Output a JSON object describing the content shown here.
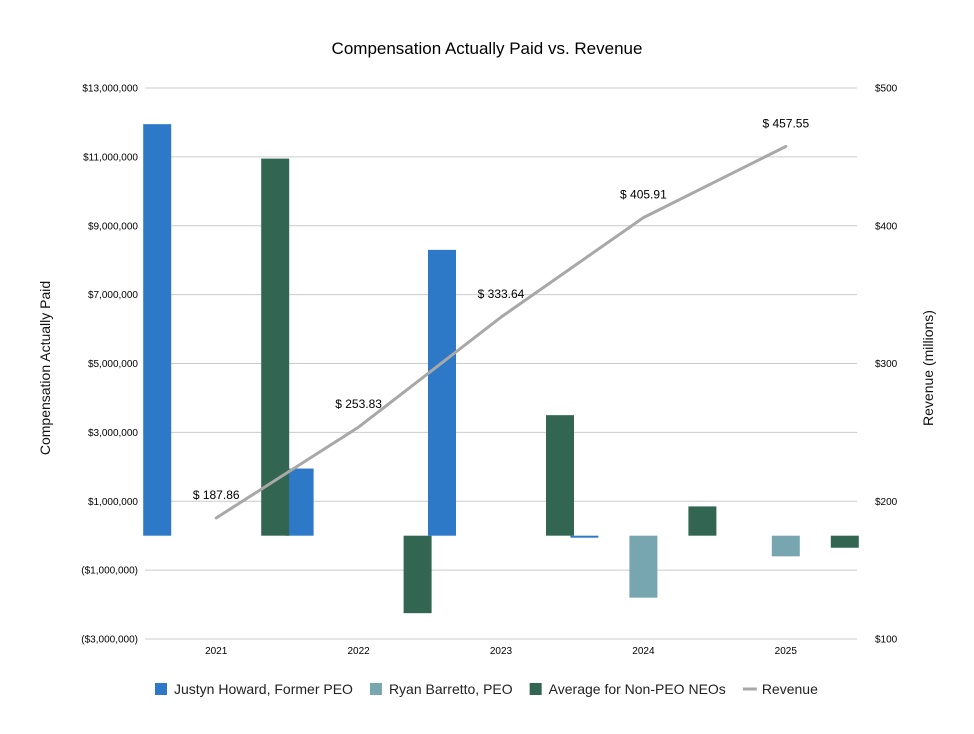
{
  "chart_data": {
    "type": "bar",
    "title": "Compensation Actually Paid vs. Revenue",
    "xlabel": "",
    "ylabel": "Compensation Actually Paid",
    "y2label": "Revenue (millions)",
    "categories": [
      "2021",
      "2022",
      "2023",
      "2024",
      "2025"
    ],
    "ylim": [
      -3000000,
      13000000
    ],
    "yticks": [
      -3000000,
      -1000000,
      1000000,
      3000000,
      5000000,
      7000000,
      9000000,
      11000000,
      13000000
    ],
    "ytick_labels": [
      "($3,000,000)",
      "($1,000,000)",
      "$1,000,000",
      "$3,000,000",
      "$5,000,000",
      "$7,000,000",
      "$9,000,000",
      "$11,000,000",
      "$13,000,000"
    ],
    "y2lim": [
      100,
      500
    ],
    "y2ticks": [
      100,
      200,
      300,
      400,
      500
    ],
    "y2tick_labels": [
      "$100",
      "$200",
      "$300",
      "$400",
      "$500"
    ],
    "grid": true,
    "legend_position": "bottom",
    "series": [
      {
        "name": "Justyn Howard, Former PEO",
        "kind": "bar",
        "color": "#2e79c7",
        "values": [
          11950000,
          1950000,
          8300000,
          -50000,
          null
        ]
      },
      {
        "name": "Ryan Barretto, PEO",
        "kind": "bar",
        "color": "#78a6b0",
        "values": [
          null,
          null,
          null,
          -1800000,
          -600000
        ]
      },
      {
        "name": "Average for Non-PEO NEOs",
        "kind": "bar",
        "color": "#326652",
        "values": [
          10950000,
          -2250000,
          3500000,
          850000,
          -350000
        ]
      },
      {
        "name": "Revenue",
        "kind": "line",
        "axis": "right",
        "color": "#a8a8a8",
        "values": [
          187.86,
          253.83,
          333.64,
          405.91,
          457.55
        ],
        "labels": [
          "$ 187.86",
          "$ 253.83",
          "$ 333.64",
          "$ 405.91",
          "$ 457.55"
        ]
      }
    ]
  }
}
